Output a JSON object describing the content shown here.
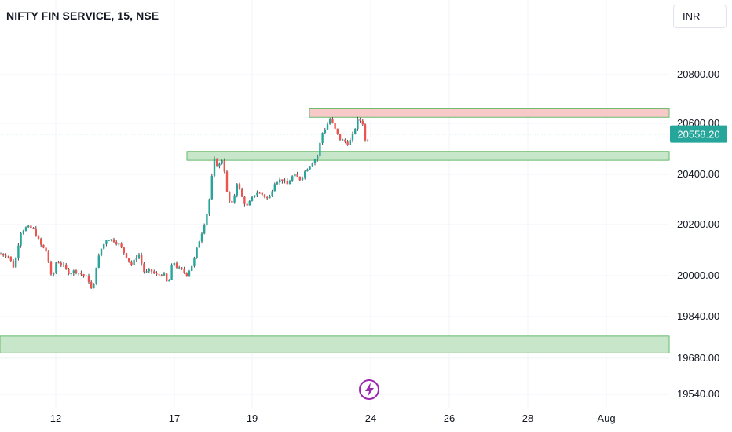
{
  "header": {
    "title": "NIFTY FIN SERVICE, 15, NSE",
    "currency_button": "INR"
  },
  "chart_data": {
    "type": "candlestick",
    "title": "NIFTY FIN SERVICE, 15, NSE",
    "y_axis_ticks": [
      "20800.00",
      "20600.00",
      "20400.00",
      "20200.00",
      "20000.00",
      "19840.00",
      "19680.00",
      "19540.00"
    ],
    "y_axis_values": [
      20800,
      20600,
      20400,
      20200,
      20000,
      19840,
      19680,
      19540
    ],
    "x_axis_ticks": [
      {
        "label": "12"
      },
      {
        "label": "17"
      },
      {
        "label": "19"
      },
      {
        "label": "24"
      },
      {
        "label": "26"
      },
      {
        "label": "28"
      },
      {
        "label": "Aug"
      }
    ],
    "last_price": "20558.20",
    "last_price_value": 20558.2,
    "colors": {
      "up": "#26a69a",
      "down": "#ef5350",
      "wick": "#4a4a4a",
      "support_fill": "#c8e6c9",
      "support_border": "#66bb6a",
      "resistance_fill": "#f8c9c9",
      "badge": "#26a69a",
      "flash": "#9c27b0"
    },
    "zones": [
      {
        "kind": "resistance",
        "low": 20625,
        "high": 20660
      },
      {
        "kind": "support",
        "low": 20455,
        "high": 20490
      },
      {
        "kind": "support",
        "low": 19700,
        "high": 19765
      }
    ],
    "series_path": [
      [
        0,
        20085
      ],
      [
        10,
        20080
      ],
      [
        18,
        20030
      ],
      [
        26,
        20170
      ],
      [
        34,
        20190
      ],
      [
        42,
        20185
      ],
      [
        52,
        20120
      ],
      [
        60,
        20090
      ],
      [
        66,
        19980
      ],
      [
        72,
        20060
      ],
      [
        80,
        20040
      ],
      [
        88,
        20010
      ],
      [
        96,
        20020
      ],
      [
        104,
        20005
      ],
      [
        112,
        19990
      ],
      [
        118,
        19930
      ],
      [
        122,
        20030
      ],
      [
        128,
        20100
      ],
      [
        136,
        20145
      ],
      [
        144,
        20140
      ],
      [
        152,
        20120
      ],
      [
        160,
        20080
      ],
      [
        168,
        20040
      ],
      [
        176,
        20090
      ],
      [
        184,
        20010
      ],
      [
        192,
        20020
      ],
      [
        200,
        20000
      ],
      [
        208,
        20010
      ],
      [
        214,
        19960
      ],
      [
        220,
        20060
      ],
      [
        226,
        20030
      ],
      [
        232,
        20020
      ],
      [
        238,
        20005
      ],
      [
        246,
        20050
      ],
      [
        252,
        20120
      ],
      [
        258,
        20180
      ],
      [
        264,
        20250
      ],
      [
        268,
        20330
      ],
      [
        272,
        20460
      ],
      [
        278,
        20430
      ],
      [
        284,
        20465
      ],
      [
        290,
        20300
      ],
      [
        296,
        20280
      ],
      [
        302,
        20370
      ],
      [
        308,
        20310
      ],
      [
        314,
        20270
      ],
      [
        320,
        20300
      ],
      [
        326,
        20330
      ],
      [
        334,
        20320
      ],
      [
        342,
        20300
      ],
      [
        350,
        20370
      ],
      [
        358,
        20380
      ],
      [
        366,
        20360
      ],
      [
        374,
        20400
      ],
      [
        382,
        20380
      ],
      [
        390,
        20420
      ],
      [
        398,
        20450
      ],
      [
        404,
        20470
      ],
      [
        410,
        20560
      ],
      [
        416,
        20590
      ],
      [
        420,
        20620
      ],
      [
        426,
        20580
      ],
      [
        432,
        20540
      ],
      [
        438,
        20530
      ],
      [
        444,
        20520
      ],
      [
        450,
        20560
      ],
      [
        456,
        20620
      ],
      [
        462,
        20600
      ],
      [
        466,
        20510
      ],
      [
        470,
        20558
      ]
    ]
  }
}
